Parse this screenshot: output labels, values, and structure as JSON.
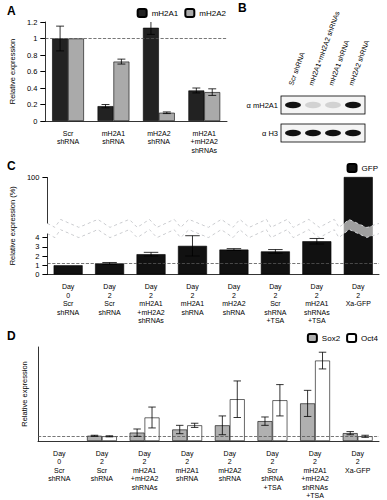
{
  "chart_data": [
    {
      "type": "bar",
      "title": "A",
      "ylabel": "Relative expression",
      "categories": [
        "Scr shRNA",
        "mH2A1 shRNA",
        "mH2A2 shRNA",
        "mH2A1 +mH2A2 shRNAs"
      ],
      "series": [
        {
          "name": "mH2A1",
          "color": "#222222",
          "values": [
            1.0,
            0.18,
            1.13,
            0.37
          ],
          "errors": [
            0.15,
            0.02,
            0.08,
            0.03
          ]
        },
        {
          "name": "mH2A2",
          "color": "#aaaaaa",
          "values": [
            1.0,
            0.72,
            0.1,
            0.35
          ],
          "errors": [
            0.0,
            0.03,
            0.01,
            0.04
          ]
        }
      ],
      "ylim": [
        0,
        1.2
      ],
      "yticks": [
        0,
        0.2,
        0.4,
        0.6,
        0.8,
        1,
        1.2
      ],
      "reference_line": 1,
      "grid": false,
      "legend": "upper right"
    },
    {
      "type": "bar",
      "title": "C",
      "ylabel": "Relative expression (%)",
      "categories": [
        "Day 0 Scr shRNA",
        "Day 2 Scr shRNA",
        "Day 2 mH2A1 +mH2A2 shRNAs",
        "Day 2 mH2A1 shRNA",
        "Day 2 mH2A2 shRNA",
        "Day 2 Scr shRNA +TSA",
        "Day 2 mH2A1 shRNAs +TSA",
        "Day 2 Xa-GFP"
      ],
      "series": [
        {
          "name": "GFP",
          "color": "#111111",
          "values": [
            1.0,
            1.2,
            2.2,
            3.1,
            2.7,
            2.5,
            3.6,
            100
          ],
          "errors": [
            0,
            0.1,
            0.2,
            1.1,
            0.1,
            0.2,
            0.3,
            0
          ]
        }
      ],
      "ylim": [
        0,
        100
      ],
      "yticks": [
        0,
        1,
        2,
        3,
        4,
        100
      ],
      "ybreak": [
        4.5,
        95
      ],
      "reference_line": 1.2,
      "grid": false,
      "legend": "upper right"
    },
    {
      "type": "bar",
      "title": "D",
      "ylabel": "Relative expression",
      "categories": [
        "Day 0 Scr shRNA",
        "Day 2 Scr shRNA",
        "Day 2 mH2A1 +mH2A2 shRNAs",
        "Day 2 mH2A1 shRNA",
        "Day 2 mH2A2 shRNA",
        "Day 2 Scr shRNA +TSA",
        "Day 2 mH2A1 +mH2A2 shRNAs +TSA",
        "Day 2 Xa-GFP"
      ],
      "series": [
        {
          "name": "Sox2",
          "color": "#b0b0b0",
          "values": [
            null,
            1.0,
            1.6,
            2.2,
            3.0,
            3.8,
            7.2,
            1.5
          ],
          "errors": [
            null,
            0.1,
            0.7,
            0.8,
            1.8,
            0.8,
            2.5,
            0.3
          ]
        },
        {
          "name": "Oct4",
          "color": "#ffffff",
          "values": [
            null,
            0.9,
            4.5,
            3.0,
            8.0,
            7.8,
            15.4,
            0.9
          ],
          "errors": [
            null,
            0.1,
            2.0,
            0.4,
            3.5,
            3.0,
            1.6,
            0.2
          ]
        }
      ],
      "ylim": [
        0,
        18
      ],
      "tick_labels": "x",
      "reference_line": 1,
      "grid": false,
      "legend": "upper right"
    }
  ],
  "blot": {
    "title": "B",
    "lanes": [
      "Scr shRNA",
      "mH2A1+mH2A2 shRNAs",
      "mH2A1 shRNA",
      "mH2A2 shRNA"
    ],
    "rows": [
      {
        "label": "α mH2A1",
        "intensity": [
          1,
          0.15,
          0.15,
          1
        ]
      },
      {
        "label": "α H3",
        "intensity": [
          1,
          1,
          1,
          1
        ]
      }
    ]
  }
}
